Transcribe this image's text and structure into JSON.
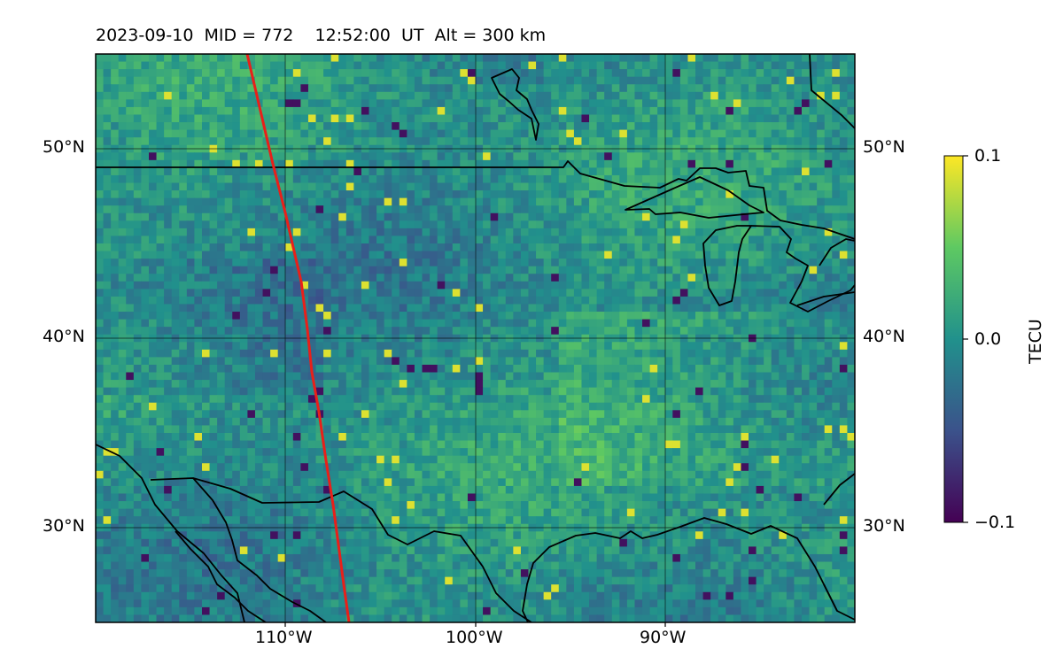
{
  "title": "2023-09-10  MID = 772    12:52:00  UT  Alt = 300 km",
  "map": {
    "lat_ticks": [
      "50°N",
      "40°N",
      "30°N"
    ],
    "lon_ticks": [
      "110°W",
      "100°W",
      "90°W"
    ],
    "lat_range": [
      25,
      55
    ],
    "lon_range": [
      -120,
      -80
    ],
    "grid": true,
    "track_color": "#e8201a",
    "coastline_color": "#000000"
  },
  "colorbar": {
    "label": "TECU",
    "ticks": [
      "0.1",
      "0.0",
      "−0.1"
    ],
    "min": -0.1,
    "max": 0.1,
    "colormap": "viridis"
  }
}
